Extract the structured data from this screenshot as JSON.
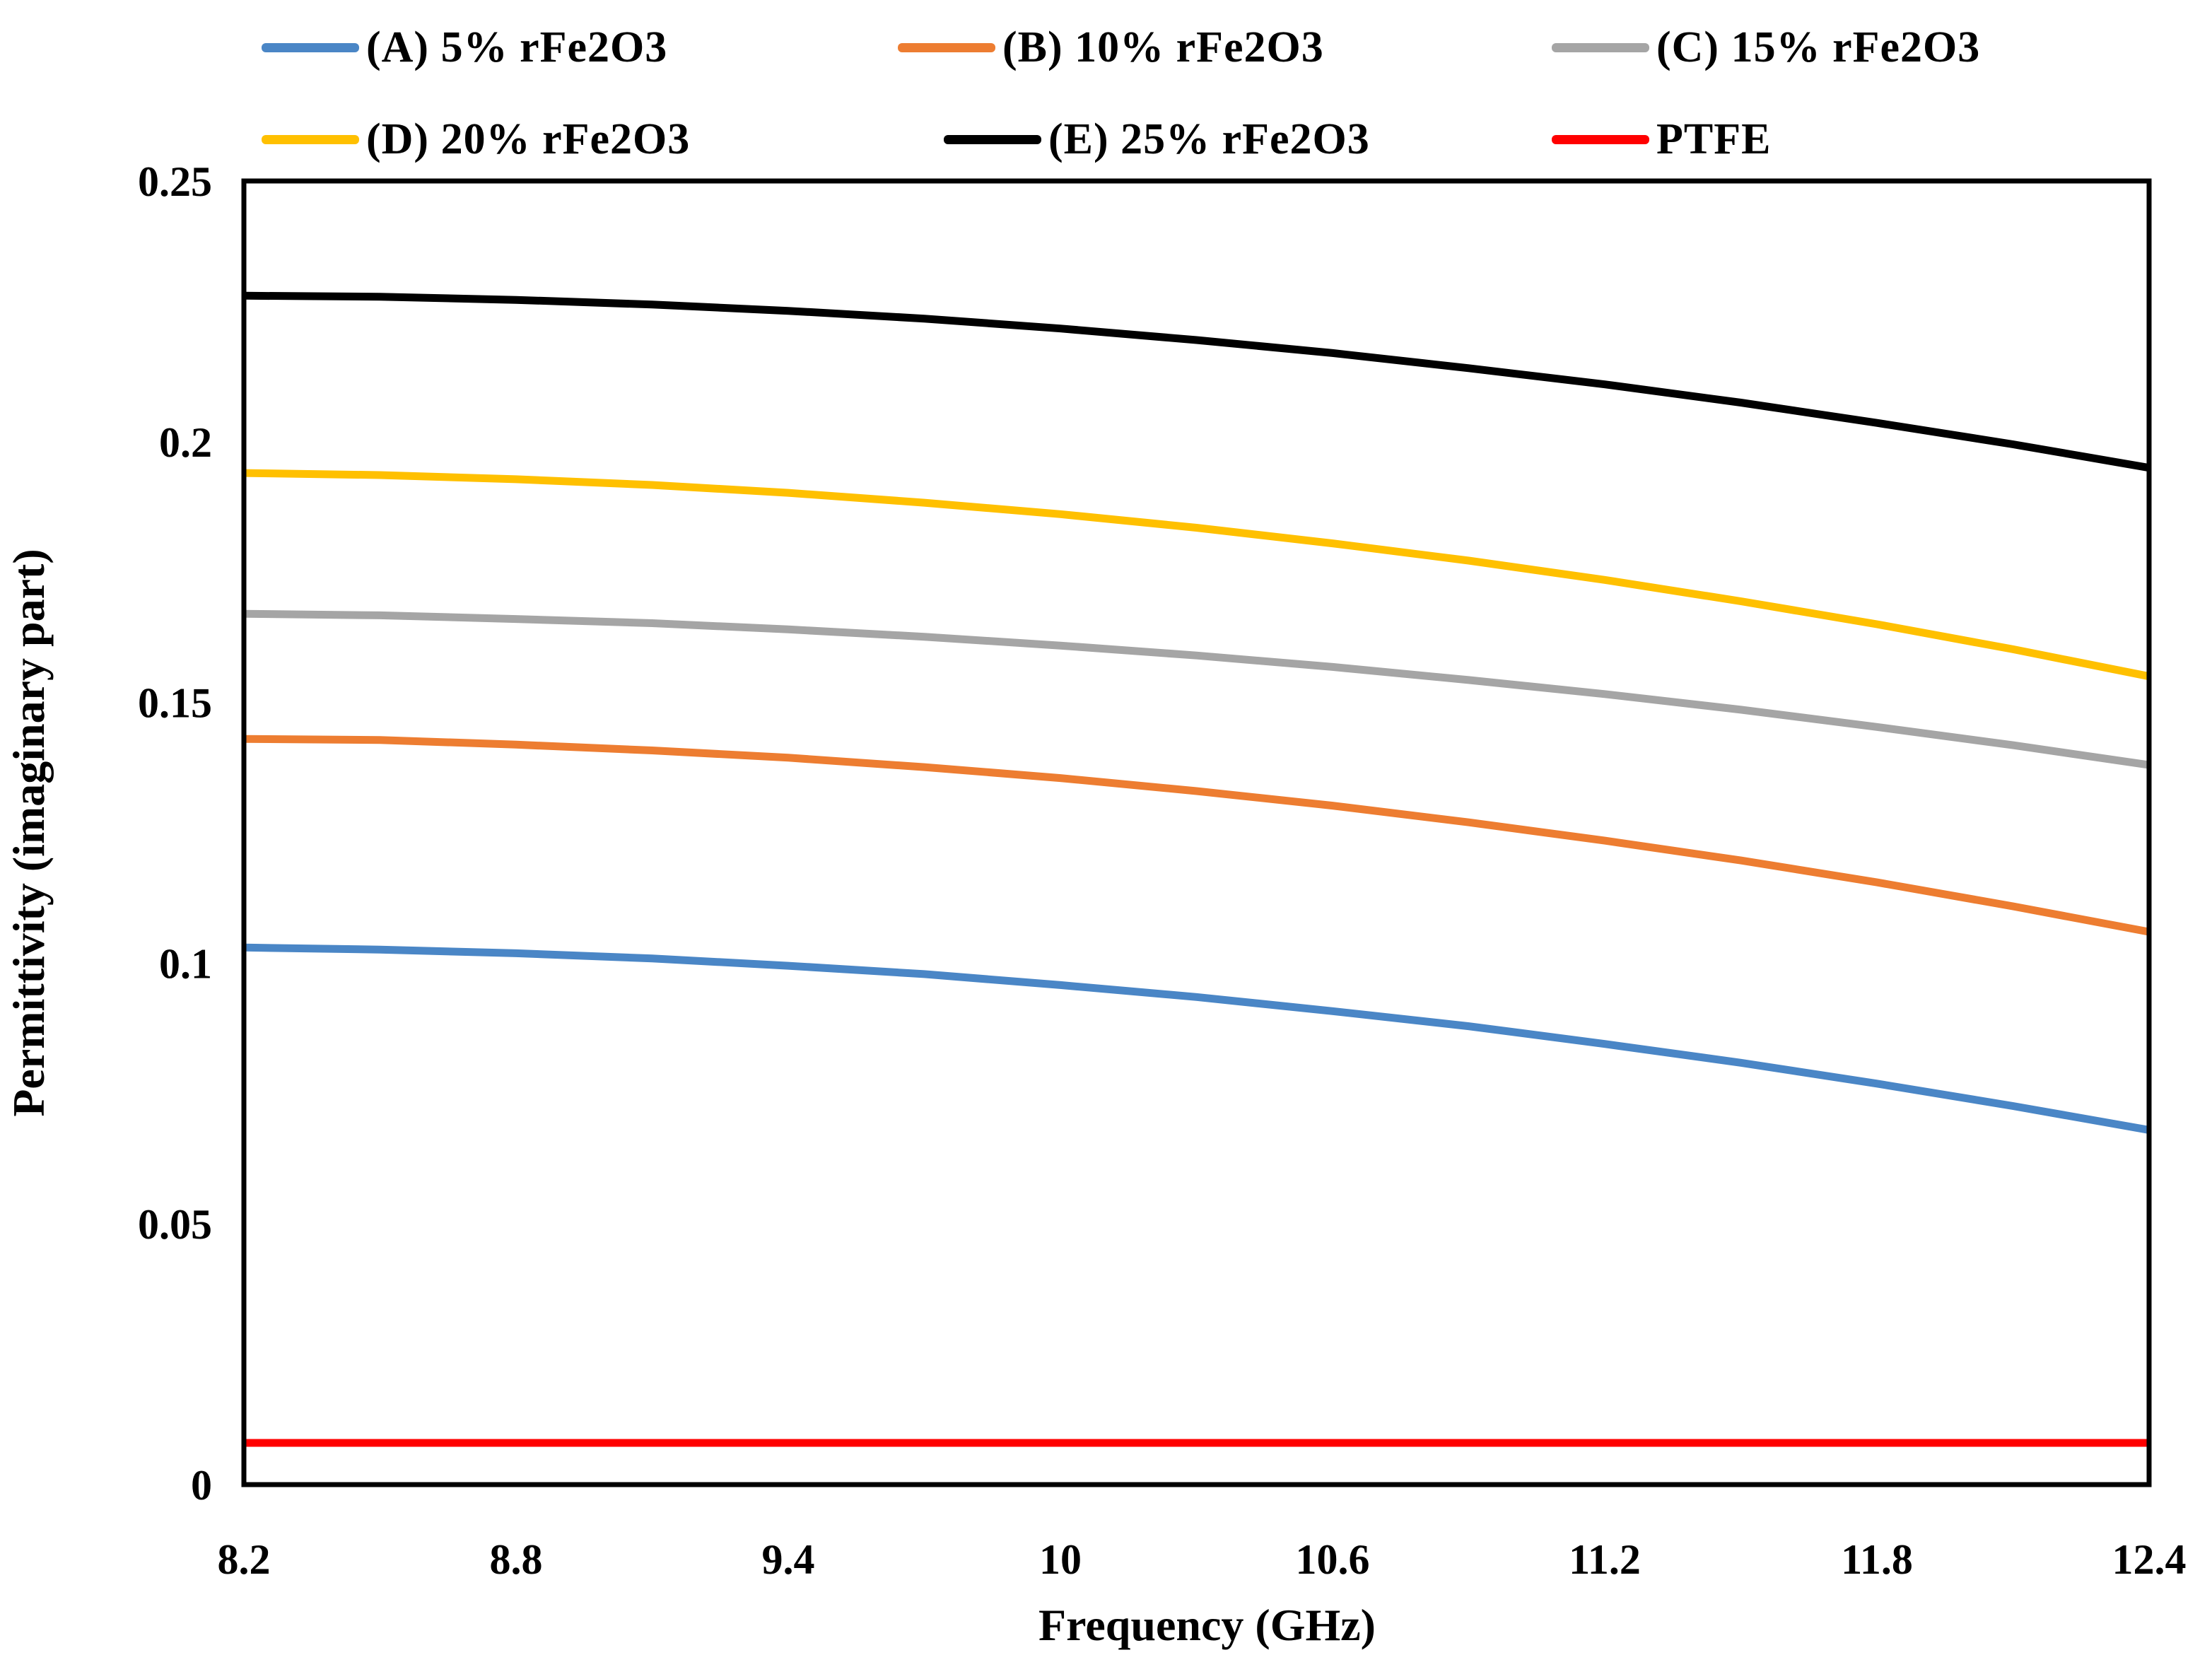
{
  "chart_data": {
    "type": "line",
    "title": "",
    "xlabel": "Frequency (GHz)",
    "ylabel": "Permittivity (imaginary part)",
    "xlim": [
      8.2,
      12.4
    ],
    "ylim": [
      0,
      0.25
    ],
    "grid": false,
    "legend_position": "top",
    "x_tick_labels": [
      "8.2",
      "8.8",
      "9.4",
      "10",
      "10.6",
      "11.2",
      "11.8",
      "12.4"
    ],
    "y_tick_labels": [
      "0",
      "0.05",
      "0.1",
      "0.15",
      "0.2",
      "0.25"
    ],
    "x": [
      8.2,
      8.5,
      8.8,
      9.1,
      9.4,
      9.7,
      10.0,
      10.3,
      10.6,
      10.9,
      11.2,
      11.5,
      11.8,
      12.1,
      12.4
    ],
    "series": [
      {
        "name": "(A) 5% rFe2O3",
        "color": "#4A86C6",
        "values": [
          0.103,
          0.1026,
          0.1019,
          0.1009,
          0.0995,
          0.0979,
          0.0958,
          0.0935,
          0.0908,
          0.0879,
          0.0845,
          0.0809,
          0.0769,
          0.0726,
          0.068
        ]
      },
      {
        "name": "(B) 10% rFe2O3",
        "color": "#ED7D31",
        "values": [
          0.143,
          0.1428,
          0.1419,
          0.1408,
          0.1394,
          0.1376,
          0.1355,
          0.133,
          0.1302,
          0.127,
          0.1235,
          0.1197,
          0.1155,
          0.1109,
          0.106
        ]
      },
      {
        "name": "(C) 15% rFe2O3",
        "color": "#A5A5A5",
        "values": [
          0.167,
          0.1667,
          0.166,
          0.1652,
          0.164,
          0.1626,
          0.1609,
          0.159,
          0.1568,
          0.1543,
          0.1516,
          0.1486,
          0.1453,
          0.1418,
          0.138
        ]
      },
      {
        "name": "(D) 20% rFe2O3",
        "color": "#FFC000",
        "values": [
          0.194,
          0.1936,
          0.1928,
          0.1917,
          0.1902,
          0.1883,
          0.1861,
          0.1835,
          0.1805,
          0.1772,
          0.1735,
          0.1694,
          0.165,
          0.1602,
          0.155
        ]
      },
      {
        "name": "(E) 25% rFe2O3",
        "color": "#000000",
        "values": [
          0.228,
          0.2278,
          0.2272,
          0.2263,
          0.2251,
          0.2236,
          0.2217,
          0.2195,
          0.217,
          0.2141,
          0.211,
          0.2075,
          0.2036,
          0.1995,
          0.195
        ]
      },
      {
        "name": "PTFE",
        "color": "#FF0000",
        "values": [
          0.008,
          0.008,
          0.008,
          0.008,
          0.008,
          0.008,
          0.008,
          0.008,
          0.008,
          0.008,
          0.008,
          0.008,
          0.008,
          0.008,
          0.008
        ]
      }
    ]
  }
}
